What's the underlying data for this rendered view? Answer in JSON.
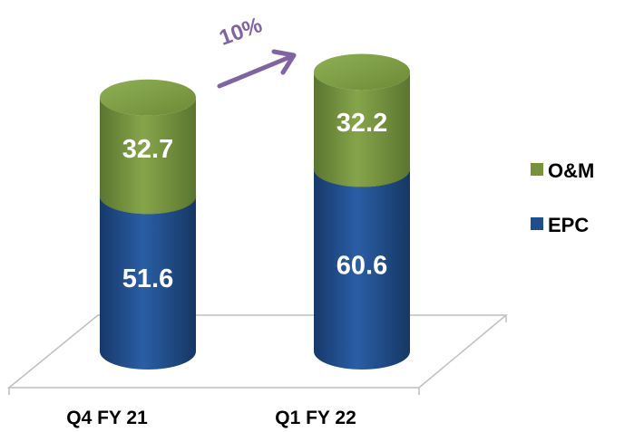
{
  "chart_data": {
    "type": "bar",
    "stacked": true,
    "style": "3d-cylinder",
    "categories": [
      "Q4 FY 21",
      "Q1 FY 22"
    ],
    "series": [
      {
        "name": "EPC",
        "values": [
          51.6,
          60.6
        ],
        "color": "#1f4e8c"
      },
      {
        "name": "O&M",
        "values": [
          32.7,
          32.2
        ],
        "color": "#76933c"
      }
    ],
    "annotation": {
      "text": "10%",
      "color": "#8064a2"
    },
    "legend_position": "right",
    "grid": false
  }
}
